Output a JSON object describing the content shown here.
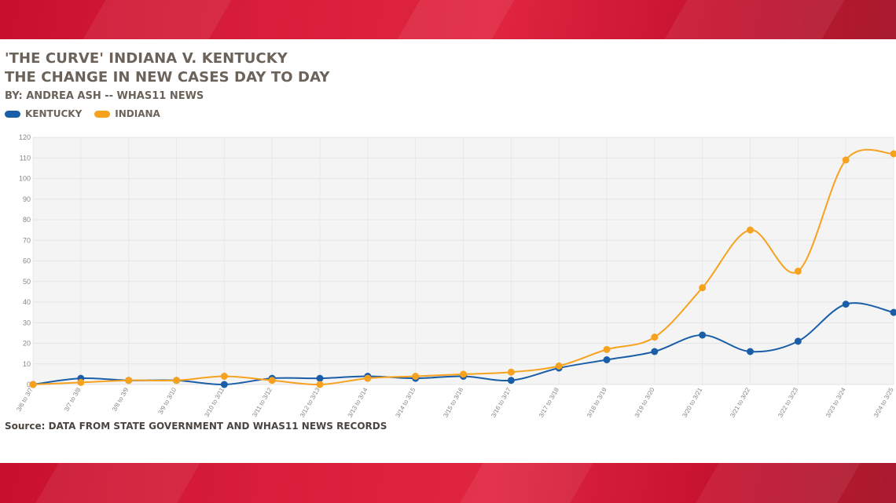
{
  "header": {
    "title_line1": "'THE CURVE' INDIANA V. KENTUCKY",
    "title_line2": "THE CHANGE IN NEW CASES DAY TO DAY",
    "byline": "BY: ANDREA ASH -- WHAS11 NEWS",
    "source": "Source: DATA FROM STATE GOVERNMENT AND WHAS11 NEWS RECORDS"
  },
  "colors": {
    "kentucky": "#1a5ea8",
    "indiana": "#f6a21e",
    "band": "#d81e3a"
  },
  "chart_data": {
    "type": "line",
    "xlabel": "",
    "ylabel": "",
    "ylim": [
      0,
      120
    ],
    "yticks": [
      0,
      10,
      20,
      30,
      40,
      50,
      60,
      70,
      80,
      90,
      100,
      110,
      120
    ],
    "grid": true,
    "legend_position": "top-left",
    "categories": [
      "3/6 to 3/7",
      "3/7 to 3/8",
      "3/8 to 3/9",
      "3/9 to 3/10",
      "3/10 to 3/11",
      "3/11 to 3/12",
      "3/12 to 3/13",
      "3/13 to 3/14",
      "3/14 to 3/15",
      "3/15 to 3/16",
      "3/16 to 3/17",
      "3/17 to 3/18",
      "3/18 to 3/19",
      "3/19 to 3/20",
      "3/20 to 3/21",
      "3/21 to 3/22",
      "3/22 to 3/23",
      "3/23 to 3/24",
      "3/24 to 3/25"
    ],
    "series": [
      {
        "name": "KENTUCKY",
        "color": "#1a5ea8",
        "values": [
          0,
          3,
          2,
          2,
          0,
          3,
          3,
          4,
          3,
          4,
          2,
          8,
          12,
          16,
          24,
          16,
          21,
          39,
          35
        ]
      },
      {
        "name": "INDIANA",
        "color": "#f6a21e",
        "values": [
          0,
          1,
          2,
          2,
          4,
          2,
          0,
          3,
          4,
          5,
          6,
          9,
          17,
          23,
          47,
          75,
          55,
          109,
          112
        ]
      }
    ]
  }
}
